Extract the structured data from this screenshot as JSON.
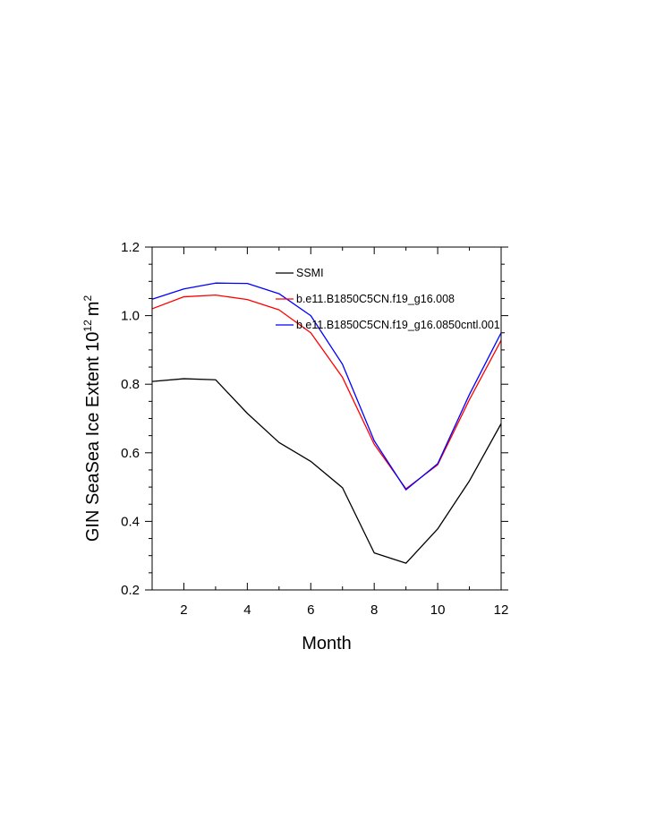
{
  "chart_data": {
    "type": "line",
    "title": "",
    "xlabel": "Month",
    "ylabel": "GIN SeaSea Ice Extent 10",
    "ylabel_superscript": "12",
    "ylabel_unit": "m",
    "ylabel_unit_superscript": "2",
    "x": [
      1,
      2,
      3,
      4,
      5,
      6,
      7,
      8,
      9,
      10,
      11,
      12
    ],
    "xlim": [
      1,
      12
    ],
    "ylim": [
      0.2,
      1.2
    ],
    "xticks": [
      "2",
      "4",
      "6",
      "8",
      "10",
      "12"
    ],
    "xtick_values": [
      2,
      4,
      6,
      8,
      10,
      12
    ],
    "yticks": [
      "0.2",
      "0.4",
      "0.6",
      "0.8",
      "1.0",
      "1.2"
    ],
    "ytick_values": [
      0.2,
      0.4,
      0.6,
      0.8,
      1.0,
      1.2
    ],
    "grid": false,
    "legend_position": "top-right",
    "series": [
      {
        "name": "SSMI",
        "color": "#000000",
        "values": [
          0.808,
          0.816,
          0.813,
          0.715,
          0.63,
          0.575,
          0.498,
          0.308,
          0.278,
          0.378,
          0.518,
          0.685
        ]
      },
      {
        "name": "b.e11.B1850C5CN.f19_g16.008",
        "color": "#ff0000",
        "values": [
          1.02,
          1.055,
          1.06,
          1.047,
          1.017,
          0.95,
          0.82,
          0.625,
          0.495,
          0.565,
          0.755,
          0.928
        ]
      },
      {
        "name": "b.e11.B1850C5CN.f19_g16.0850cntl.001",
        "color": "#0000ff",
        "values": [
          1.048,
          1.078,
          1.095,
          1.094,
          1.064,
          1.0,
          0.858,
          0.635,
          0.492,
          0.568,
          0.77,
          0.95
        ]
      }
    ]
  }
}
